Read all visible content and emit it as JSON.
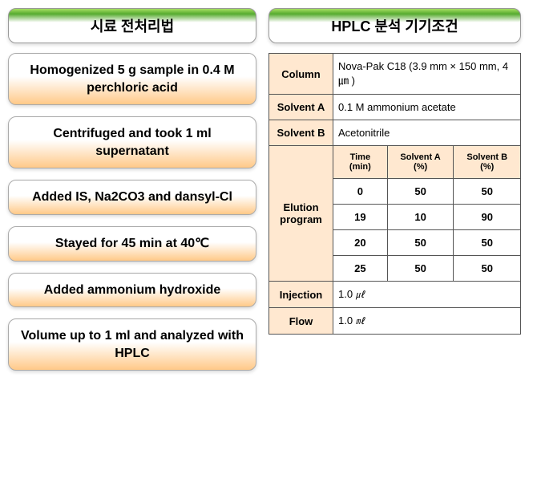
{
  "left": {
    "header": "시료 전처리법",
    "steps": [
      "Homogenized 5 g sample in 0.4 M perchloric acid",
      "Centrifuged and took 1 ml supernatant",
      "Added IS, Na2CO3 and dansyl-Cl",
      "Stayed for 45 min at 40℃",
      "Added ammonium hydroxide",
      "Volume up to 1 ml and analyzed with HPLC"
    ]
  },
  "right": {
    "header": "HPLC 분석 기기조건",
    "column": {
      "label": "Column",
      "value": "Nova-Pak C18 (3.9 mm × 150 mm, 4㎛ )"
    },
    "solventA": {
      "label": "Solvent A",
      "value": "0.1 M ammonium acetate"
    },
    "solventB": {
      "label": "Solvent B",
      "value": "Acetonitrile"
    },
    "elution": {
      "label": "Elution program",
      "headers": {
        "time": "Time (min)",
        "a": "Solvent A (%)",
        "b": "Solvent B (%)"
      },
      "rows": [
        {
          "time": "0",
          "a": "50",
          "b": "50"
        },
        {
          "time": "19",
          "a": "10",
          "b": "90"
        },
        {
          "time": "20",
          "a": "50",
          "b": "50"
        },
        {
          "time": "25",
          "a": "50",
          "b": "50"
        }
      ]
    },
    "injection": {
      "label": "Injection",
      "value": "1.0",
      "unit": "㎕"
    },
    "flow": {
      "label": "Flow",
      "value": "1.0",
      "unit": "㎖"
    }
  },
  "style": {
    "header_bg_gradient": [
      "#a8e063",
      "#56ab2f",
      "#ffffff"
    ],
    "step_bg_gradient": [
      "#ffffff",
      "#ffc988"
    ],
    "table_label_bg": "#ffe8d0",
    "border_color": "#555555",
    "font_family": "Arial, sans-serif"
  }
}
